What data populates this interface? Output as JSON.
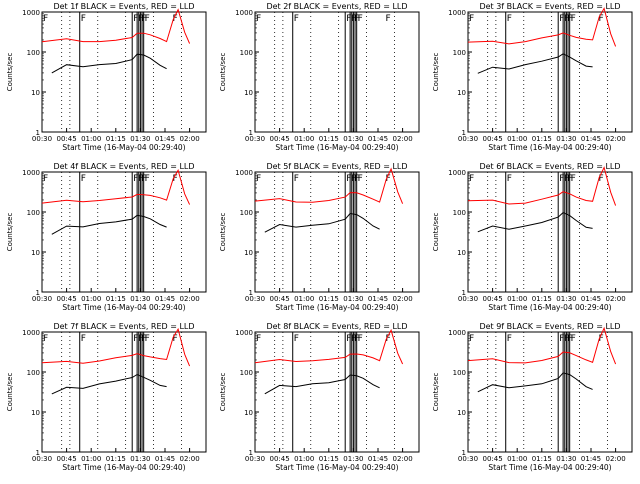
{
  "panels": [
    {
      "title": "Det 1f BLACK = Events, RED = LLD",
      "has_data": true
    },
    {
      "title": "Det 2f BLACK = Events, RED = LLD",
      "has_data": false
    },
    {
      "title": "Det 3f BLACK = Events, RED = LLD",
      "has_data": true
    },
    {
      "title": "Det 4f BLACK = Events, RED = LLD",
      "has_data": true
    },
    {
      "title": "Det 5f BLACK = Events, RED = LLD",
      "has_data": true
    },
    {
      "title": "Det 6f BLACK = Events, RED = LLD",
      "has_data": true
    },
    {
      "title": "Det 7f BLACK = Events, RED = LLD",
      "has_data": true
    },
    {
      "title": "Det 8f BLACK = Events, RED = LLD",
      "has_data": true
    },
    {
      "title": "Det 9f BLACK = Events, RED = LLD",
      "has_data": true
    }
  ],
  "chart_data": {
    "type": "line",
    "xlabel": "Start Time (16-May-04 00:29:40)",
    "ylabel": "Counts/sec",
    "x_ticks": [
      "00:30",
      "00:45",
      "01:00",
      "01:15",
      "01:30",
      "01:45",
      "02:00"
    ],
    "y_ticks": [
      "1",
      "10",
      "100",
      "1000"
    ],
    "y_scale": "log",
    "ylim": [
      1,
      1000
    ],
    "xlim_minutes": [
      30,
      130
    ],
    "dotted_lines_minutes": [
      42,
      47,
      64,
      81,
      98,
      115
    ],
    "solid_lines_minutes": [
      53,
      85,
      88,
      89,
      90,
      91,
      92
    ],
    "flag_marker": "F",
    "flag_positions_minutes": [
      30,
      53,
      85,
      88,
      90,
      92,
      109
    ],
    "series": [
      {
        "name": "Events",
        "color": "#000000",
        "x": [
          36,
          45,
          55,
          65,
          75,
          85,
          88,
          92,
          96,
          102,
          106
        ],
        "y": [
          30,
          45,
          40,
          48,
          55,
          70,
          90,
          80,
          65,
          45,
          40
        ]
      },
      {
        "name": "LLD",
        "color": "#ff0000",
        "x": [
          30,
          45,
          55,
          65,
          75,
          85,
          88,
          92,
          96,
          102,
          106,
          110,
          113,
          117,
          120
        ],
        "y": [
          180,
          200,
          170,
          180,
          210,
          250,
          300,
          280,
          250,
          210,
          190,
          700,
          1200,
          300,
          150
        ]
      }
    ]
  }
}
